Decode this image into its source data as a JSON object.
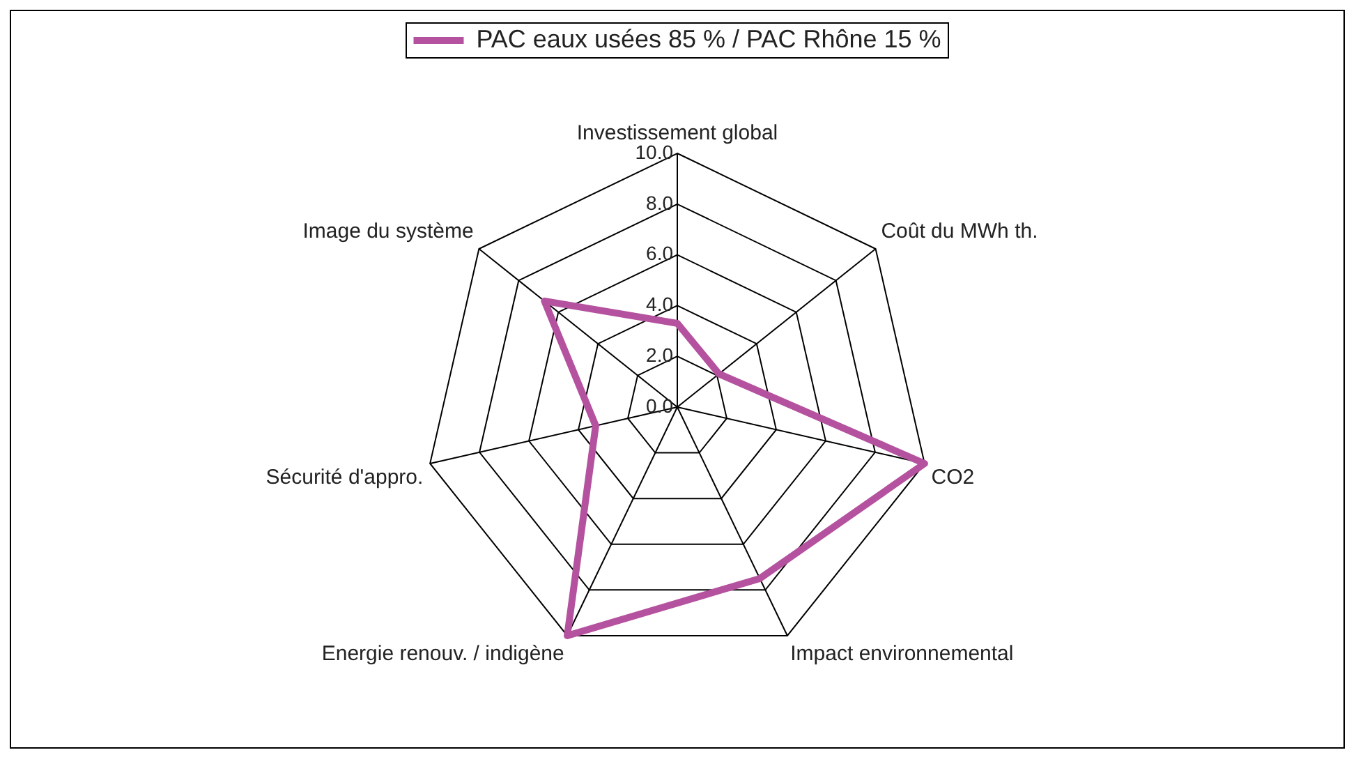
{
  "chart_data": {
    "type": "radar",
    "categories": [
      "Investissement global",
      "Coût du MWh th.",
      "CO2",
      "Impact environnemental",
      "Energie renouv. / indigène",
      "Sécurité d'appro.",
      "Image du système"
    ],
    "series": [
      {
        "name": "PAC eaux usées 85 % / PAC Rhône 15 %",
        "color": "#b5529f",
        "values": [
          3.3,
          2.1,
          10,
          7.5,
          10,
          3.3,
          6.7
        ]
      }
    ],
    "ylim": [
      0,
      10
    ],
    "yticks": [
      {
        "value": 0,
        "label": "0.0"
      },
      {
        "value": 2,
        "label": "2.0"
      },
      {
        "value": 4,
        "label": "4.0"
      },
      {
        "value": 6,
        "label": "6.0"
      },
      {
        "value": 8,
        "label": "8.0"
      },
      {
        "value": 10,
        "label": "10.0"
      }
    ],
    "grid": true,
    "legend": "top"
  }
}
